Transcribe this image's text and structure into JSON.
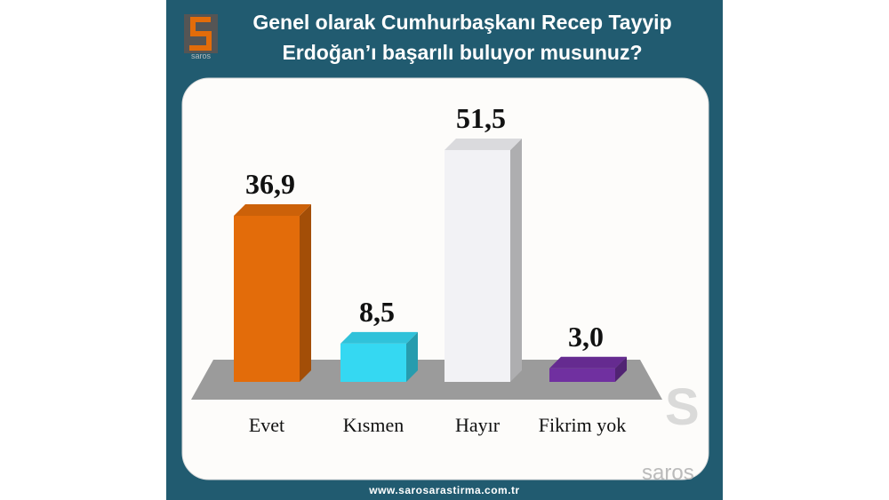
{
  "chart_data": {
    "type": "bar3d",
    "title": "Genel olarak Cumhurbaşkanı Recep Tayyip Erdoğan’ı başarılı buluyor musunuz?",
    "categories": [
      "Evet",
      "Kısmen",
      "Hayır",
      "Fikrim yok"
    ],
    "values": [
      36.9,
      8.5,
      51.5,
      3.0
    ],
    "value_labels": [
      "36,9",
      "8,5",
      "51,5",
      "3,0"
    ],
    "colors": [
      "#e36c0a",
      "#35d8f2",
      "#f2f2f5",
      "#7030a0"
    ],
    "brand": "saros",
    "website": "www.sarosarastirma.com.tr"
  }
}
